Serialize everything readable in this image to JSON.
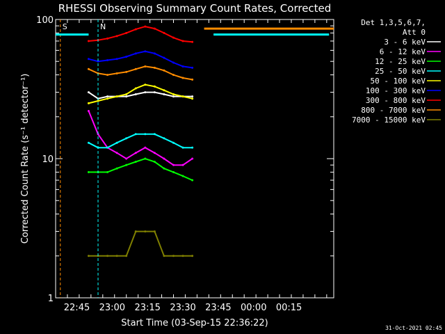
{
  "chart_data": {
    "type": "line",
    "title": "RHESSI Observing Summary Count Rates, Corrected",
    "xlabel": "Start Time (03-Sep-15 22:36:22)",
    "ylabel": "Corrected Count Rate (s⁻¹ detector⁻¹)",
    "y_scale": "log",
    "ylim": [
      1,
      100
    ],
    "xlim_minutes_after_2236": [
      0,
      118
    ],
    "x_ticks": [
      {
        "label": "22:45",
        "t": 9
      },
      {
        "label": "23:00",
        "t": 24
      },
      {
        "label": "23:15",
        "t": 39
      },
      {
        "label": "23:30",
        "t": 54
      },
      {
        "label": "23:45",
        "t": 69
      },
      {
        "label": "00:00",
        "t": 84
      },
      {
        "label": "00:15",
        "t": 99
      }
    ],
    "y_ticks": [
      {
        "label": "1",
        "v": 1
      },
      {
        "label": "10",
        "v": 10
      },
      {
        "label": "100",
        "v": 100
      }
    ],
    "legend_header": [
      "Det 1,3,5,6,7,",
      "Att 0"
    ],
    "legend_position": "right",
    "series": [
      {
        "name": "3 - 6 keV",
        "color": "#ffffff",
        "values": [
          30,
          27,
          28,
          28,
          28,
          29,
          30,
          30,
          29,
          28,
          28,
          28
        ]
      },
      {
        "name": "6 - 12 keV",
        "color": "#ff00ff",
        "values": [
          22,
          15,
          12,
          11,
          10,
          11,
          12,
          11,
          10,
          9,
          9,
          10
        ]
      },
      {
        "name": "12 - 25 keV",
        "color": "#00ff00",
        "values": [
          8,
          8,
          8,
          8.5,
          9,
          9.5,
          10,
          9.5,
          8.5,
          8,
          7.5,
          7
        ]
      },
      {
        "name": "25 - 50 keV",
        "color": "#00ffff",
        "values": [
          13,
          12,
          12,
          13,
          14,
          15,
          15,
          15,
          14,
          13,
          12,
          12
        ]
      },
      {
        "name": "50 - 100 keV",
        "color": "#ffff00",
        "values": [
          25,
          26,
          27,
          28,
          29,
          32,
          34,
          33,
          31,
          29,
          28,
          27
        ]
      },
      {
        "name": "100 - 300 keV",
        "color": "#0000ff",
        "values": [
          52,
          50,
          51,
          52,
          54,
          57,
          59,
          57,
          53,
          49,
          46,
          45
        ]
      },
      {
        "name": "300 - 800 keV",
        "color": "#ff0000",
        "values": [
          70,
          71,
          73,
          76,
          80,
          85,
          89,
          86,
          80,
          74,
          70,
          69
        ]
      },
      {
        "name": "800 - 7000 keV",
        "color": "#ff8c00",
        "values": [
          44,
          41,
          40,
          41,
          42,
          44,
          46,
          45,
          43,
          40,
          38,
          37
        ]
      },
      {
        "name": "7000 - 15000 keV",
        "color": "#808000",
        "values": [
          2,
          2,
          2,
          2,
          2,
          3,
          3,
          3,
          2,
          2,
          2,
          2
        ]
      }
    ],
    "sample_times_minutes": [
      14,
      18,
      22,
      26,
      30,
      34,
      38,
      42,
      46,
      50,
      54,
      58
    ],
    "saa_markers": [
      {
        "label": "S",
        "t": 2,
        "color": "#ff8c00"
      },
      {
        "label": "N",
        "t": 18,
        "color": "#00ffff"
      }
    ],
    "saa_level": 78,
    "post_level_orange": 86,
    "post_level_cyan": 78,
    "timestamp": "31-Oct-2021 02:45"
  }
}
